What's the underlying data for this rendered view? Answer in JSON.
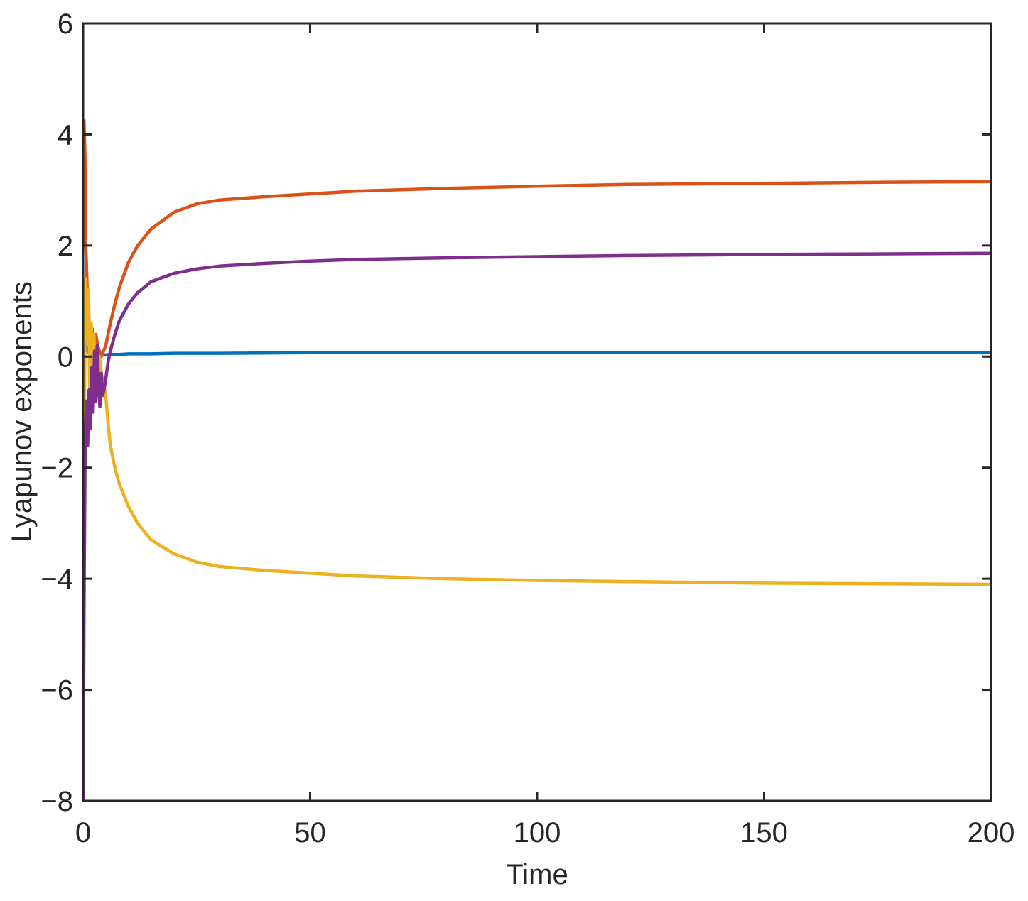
{
  "chart_data": {
    "type": "line",
    "title": "",
    "xlabel": "Time",
    "ylabel": "Lyapunov exponents",
    "xlim": [
      0,
      200
    ],
    "ylim": [
      -8,
      6
    ],
    "xticks": [
      0,
      50,
      100,
      150,
      200
    ],
    "xtick_labels": [
      "0",
      "50",
      "100",
      "150",
      "200"
    ],
    "yticks": [
      -8,
      -6,
      -4,
      -2,
      0,
      2,
      4,
      6
    ],
    "ytick_labels": [
      "−8",
      "−6",
      "−4",
      "−2",
      "0",
      "2",
      "4",
      "6"
    ],
    "grid": false,
    "legend": "none",
    "series": [
      {
        "color": "#0072BD",
        "x": [
          0,
          0.3,
          0.6,
          1,
          1.5,
          2,
          2.5,
          3,
          3.5,
          4,
          5,
          6,
          8,
          10,
          15,
          20,
          30,
          50,
          100,
          150,
          200
        ],
        "y": [
          0.7,
          0.3,
          0.2,
          0.1,
          0.05,
          0.05,
          0.02,
          0.04,
          0.02,
          0.03,
          0.03,
          0.04,
          0.04,
          0.05,
          0.05,
          0.06,
          0.06,
          0.07,
          0.07,
          0.07,
          0.07
        ]
      },
      {
        "color": "#D95319",
        "x": [
          0,
          0.2,
          0.4,
          0.6,
          0.9,
          1.2,
          1.6,
          2,
          2.4,
          2.8,
          3.2,
          3.6,
          4,
          4.5,
          5,
          6,
          7,
          8,
          10,
          12,
          15,
          20,
          25,
          30,
          40,
          50,
          60,
          80,
          100,
          120,
          150,
          175,
          200
        ],
        "y": [
          2.0,
          4.25,
          3.6,
          2.0,
          1.2,
          0.8,
          0.2,
          0.5,
          0.05,
          0.4,
          0.2,
          0.1,
          0.0,
          0.1,
          0.2,
          0.6,
          0.95,
          1.25,
          1.7,
          2.0,
          2.3,
          2.6,
          2.75,
          2.82,
          2.88,
          2.93,
          2.98,
          3.03,
          3.07,
          3.1,
          3.12,
          3.14,
          3.15
        ]
      },
      {
        "color": "#EDB120",
        "x": [
          0,
          0.2,
          0.4,
          0.6,
          0.9,
          1.2,
          1.5,
          1.8,
          2.1,
          2.4,
          2.7,
          3,
          3.3,
          3.6,
          4,
          4.5,
          5,
          5.5,
          6,
          7,
          8,
          10,
          12,
          15,
          20,
          25,
          30,
          40,
          50,
          60,
          80,
          100,
          120,
          150,
          175,
          200
        ],
        "y": [
          -4.5,
          -2.0,
          0.5,
          1.4,
          0.3,
          1.2,
          -1.0,
          0.6,
          -0.6,
          0.4,
          -0.8,
          0.2,
          -0.7,
          0.0,
          -0.3,
          -0.5,
          -0.7,
          -1.2,
          -1.6,
          -2.0,
          -2.3,
          -2.7,
          -3.0,
          -3.3,
          -3.55,
          -3.7,
          -3.78,
          -3.85,
          -3.9,
          -3.95,
          -4.0,
          -4.03,
          -4.05,
          -4.08,
          -4.09,
          -4.1
        ]
      },
      {
        "color": "#7E2F8E",
        "x": [
          0,
          0.2,
          0.4,
          0.7,
          1,
          1.3,
          1.6,
          1.9,
          2.2,
          2.5,
          2.8,
          3.1,
          3.4,
          3.7,
          4,
          4.3,
          4.6,
          5,
          5.5,
          6,
          7,
          8,
          10,
          12,
          15,
          20,
          25,
          30,
          40,
          50,
          60,
          80,
          100,
          120,
          150,
          175,
          200
        ],
        "y": [
          -8.0,
          -4.5,
          -2.0,
          -0.8,
          -1.6,
          -0.6,
          -1.3,
          -0.2,
          -1.0,
          0.1,
          -0.8,
          0.2,
          -0.5,
          -0.9,
          -0.3,
          -0.7,
          -0.6,
          -0.4,
          -0.1,
          0.1,
          0.4,
          0.65,
          0.95,
          1.15,
          1.35,
          1.5,
          1.58,
          1.63,
          1.68,
          1.72,
          1.75,
          1.78,
          1.8,
          1.82,
          1.84,
          1.85,
          1.86
        ]
      }
    ]
  }
}
